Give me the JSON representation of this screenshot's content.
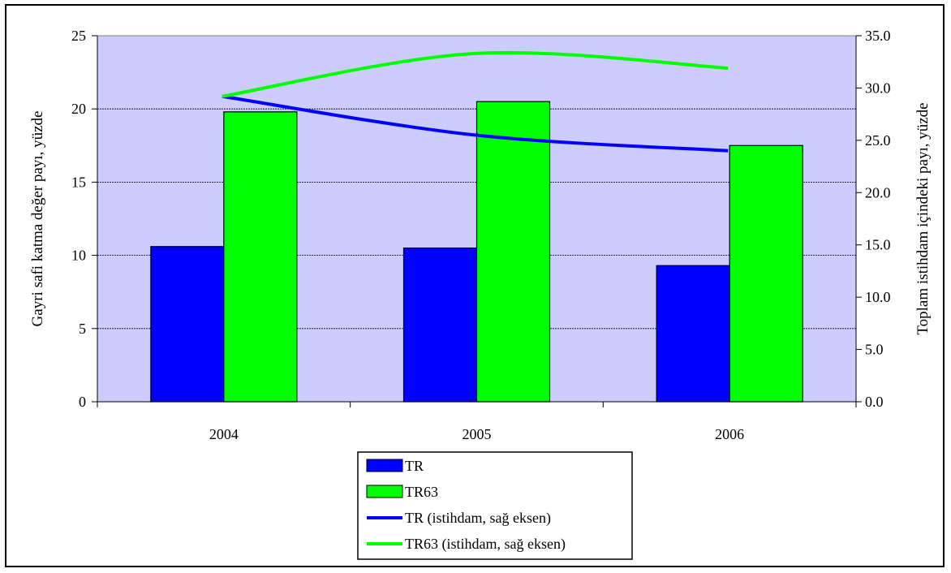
{
  "chart_data": {
    "type": "bar",
    "categories": [
      "2004",
      "2005",
      "2006"
    ],
    "series": [
      {
        "name": "TR",
        "kind": "bar",
        "axis": "left",
        "color": "#0000ff",
        "values": [
          10.6,
          10.5,
          9.3
        ]
      },
      {
        "name": "TR63",
        "kind": "bar",
        "axis": "left",
        "color": "#00ff00",
        "values": [
          19.8,
          20.5,
          17.5
        ]
      },
      {
        "name": "TR (istihdam, sağ eksen)",
        "kind": "line",
        "axis": "right",
        "color": "#0000ff",
        "values": [
          29.2,
          25.5,
          24.0
        ]
      },
      {
        "name": "TR63 (istihdam, sağ eksen)",
        "kind": "line",
        "axis": "right",
        "color": "#00ff00",
        "values": [
          29.2,
          33.3,
          31.9
        ]
      }
    ],
    "ylabel": "Gayri safi katma değer payı, yüzde",
    "y2label": "Toplam istihdam içindeki payı, yüzde",
    "ylim": [
      0,
      25
    ],
    "y2lim": [
      0,
      35
    ],
    "yticks": [
      "0",
      "5",
      "10",
      "15",
      "20",
      "25"
    ],
    "y2ticks": [
      "0.0",
      "5.0",
      "10.0",
      "15.0",
      "20.0",
      "25.0",
      "30.0",
      "35.0"
    ],
    "grid": true,
    "legend_position": "bottom-center",
    "plot_background": "#ccccff"
  }
}
